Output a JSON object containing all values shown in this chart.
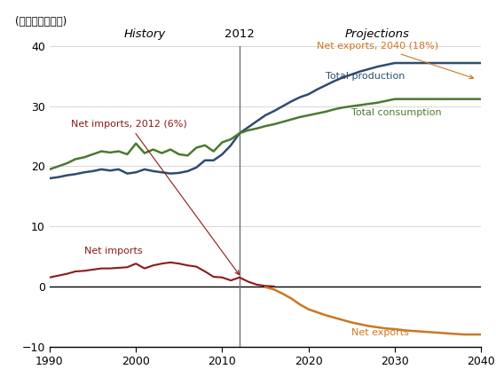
{
  "title_y": "(兆立方フィート)",
  "xlim": [
    1990,
    2040
  ],
  "ylim": [
    -10,
    40
  ],
  "yticks": [
    -10,
    0,
    10,
    20,
    30,
    40
  ],
  "xticks": [
    1990,
    2000,
    2010,
    2020,
    2030,
    2040
  ],
  "vline_x": 2012,
  "history_label": "History",
  "projections_label": "Projections",
  "year2012_label": "2012",
  "bg_color": "#ffffff",
  "grid_color": "#c8c8c8",
  "zero_line_color": "#000000",
  "vline_color": "#707070",
  "total_production": {
    "years": [
      1990,
      1991,
      1992,
      1993,
      1994,
      1995,
      1996,
      1997,
      1998,
      1999,
      2000,
      2001,
      2002,
      2003,
      2004,
      2005,
      2006,
      2007,
      2008,
      2009,
      2010,
      2011,
      2012,
      2013,
      2014,
      2015,
      2016,
      2017,
      2018,
      2019,
      2020,
      2021,
      2022,
      2023,
      2024,
      2025,
      2026,
      2027,
      2028,
      2029,
      2030,
      2031,
      2032,
      2033,
      2034,
      2035,
      2036,
      2037,
      2038,
      2039,
      2040
    ],
    "values": [
      18.0,
      18.2,
      18.5,
      18.7,
      19.0,
      19.2,
      19.5,
      19.3,
      19.5,
      18.8,
      19.0,
      19.5,
      19.2,
      19.0,
      18.8,
      18.9,
      19.2,
      19.8,
      21.0,
      21.0,
      22.0,
      23.5,
      25.5,
      26.5,
      27.5,
      28.5,
      29.2,
      30.0,
      30.8,
      31.5,
      32.0,
      32.8,
      33.5,
      34.2,
      34.8,
      35.3,
      35.8,
      36.2,
      36.6,
      36.9,
      37.2,
      37.2,
      37.2,
      37.2,
      37.2,
      37.2,
      37.2,
      37.2,
      37.2,
      37.2,
      37.2
    ],
    "color": "#2d4d6e",
    "label": "Total production"
  },
  "total_consumption": {
    "years": [
      1990,
      1991,
      1992,
      1993,
      1994,
      1995,
      1996,
      1997,
      1998,
      1999,
      2000,
      2001,
      2002,
      2003,
      2004,
      2005,
      2006,
      2007,
      2008,
      2009,
      2010,
      2011,
      2012,
      2013,
      2014,
      2015,
      2016,
      2017,
      2018,
      2019,
      2020,
      2021,
      2022,
      2023,
      2024,
      2025,
      2026,
      2027,
      2028,
      2029,
      2030,
      2031,
      2032,
      2033,
      2034,
      2035,
      2036,
      2037,
      2038,
      2039,
      2040
    ],
    "values": [
      19.5,
      20.0,
      20.5,
      21.2,
      21.5,
      22.0,
      22.5,
      22.3,
      22.5,
      22.0,
      23.8,
      22.2,
      22.8,
      22.2,
      22.8,
      22.0,
      21.8,
      23.1,
      23.5,
      22.5,
      24.0,
      24.5,
      25.5,
      26.0,
      26.3,
      26.7,
      27.0,
      27.4,
      27.8,
      28.2,
      28.5,
      28.8,
      29.1,
      29.5,
      29.8,
      30.0,
      30.2,
      30.4,
      30.6,
      30.9,
      31.2,
      31.2,
      31.2,
      31.2,
      31.2,
      31.2,
      31.2,
      31.2,
      31.2,
      31.2,
      31.2
    ],
    "color": "#4a7a2f",
    "label": "Total consumption"
  },
  "net_imports_hist": {
    "years": [
      1990,
      1991,
      1992,
      1993,
      1994,
      1995,
      1996,
      1997,
      1998,
      1999,
      2000,
      2001,
      2002,
      2003,
      2004,
      2005,
      2006,
      2007,
      2008,
      2009,
      2010,
      2011,
      2012,
      2013,
      2014,
      2015,
      2016
    ],
    "values": [
      1.5,
      1.8,
      2.1,
      2.5,
      2.6,
      2.8,
      3.0,
      3.0,
      3.1,
      3.2,
      3.8,
      3.0,
      3.5,
      3.8,
      4.0,
      3.8,
      3.5,
      3.3,
      2.5,
      1.6,
      1.5,
      1.0,
      1.5,
      0.8,
      0.3,
      0.1,
      0.0
    ],
    "color": "#8b1a1a",
    "label": "Net imports"
  },
  "net_exports_proj": {
    "years": [
      2015,
      2016,
      2017,
      2018,
      2019,
      2020,
      2021,
      2022,
      2023,
      2024,
      2025,
      2026,
      2027,
      2028,
      2029,
      2030,
      2031,
      2032,
      2033,
      2034,
      2035,
      2036,
      2037,
      2038,
      2039,
      2040
    ],
    "values": [
      -0.1,
      -0.5,
      -1.2,
      -2.0,
      -3.0,
      -3.8,
      -4.3,
      -4.8,
      -5.2,
      -5.6,
      -6.0,
      -6.3,
      -6.6,
      -6.8,
      -7.0,
      -7.1,
      -7.3,
      -7.4,
      -7.5,
      -7.6,
      -7.7,
      -7.8,
      -7.9,
      -8.0,
      -8.0,
      -8.0
    ],
    "color": "#cc7722",
    "label": "Net exports"
  },
  "ni_annot_text": "Net imports, 2012 (6%)",
  "ni_annot_color": "#8b1a1a",
  "ne_annot_text": "Net exports, 2040 (18%)",
  "ne_annot_color": "#cc7722",
  "tp_label_color": "#2d4d6e",
  "tc_label_color": "#4a7a2f",
  "ni_label_color": "#8b1a1a",
  "ne_label_color": "#cc7722",
  "brace_color": "#cc7722"
}
